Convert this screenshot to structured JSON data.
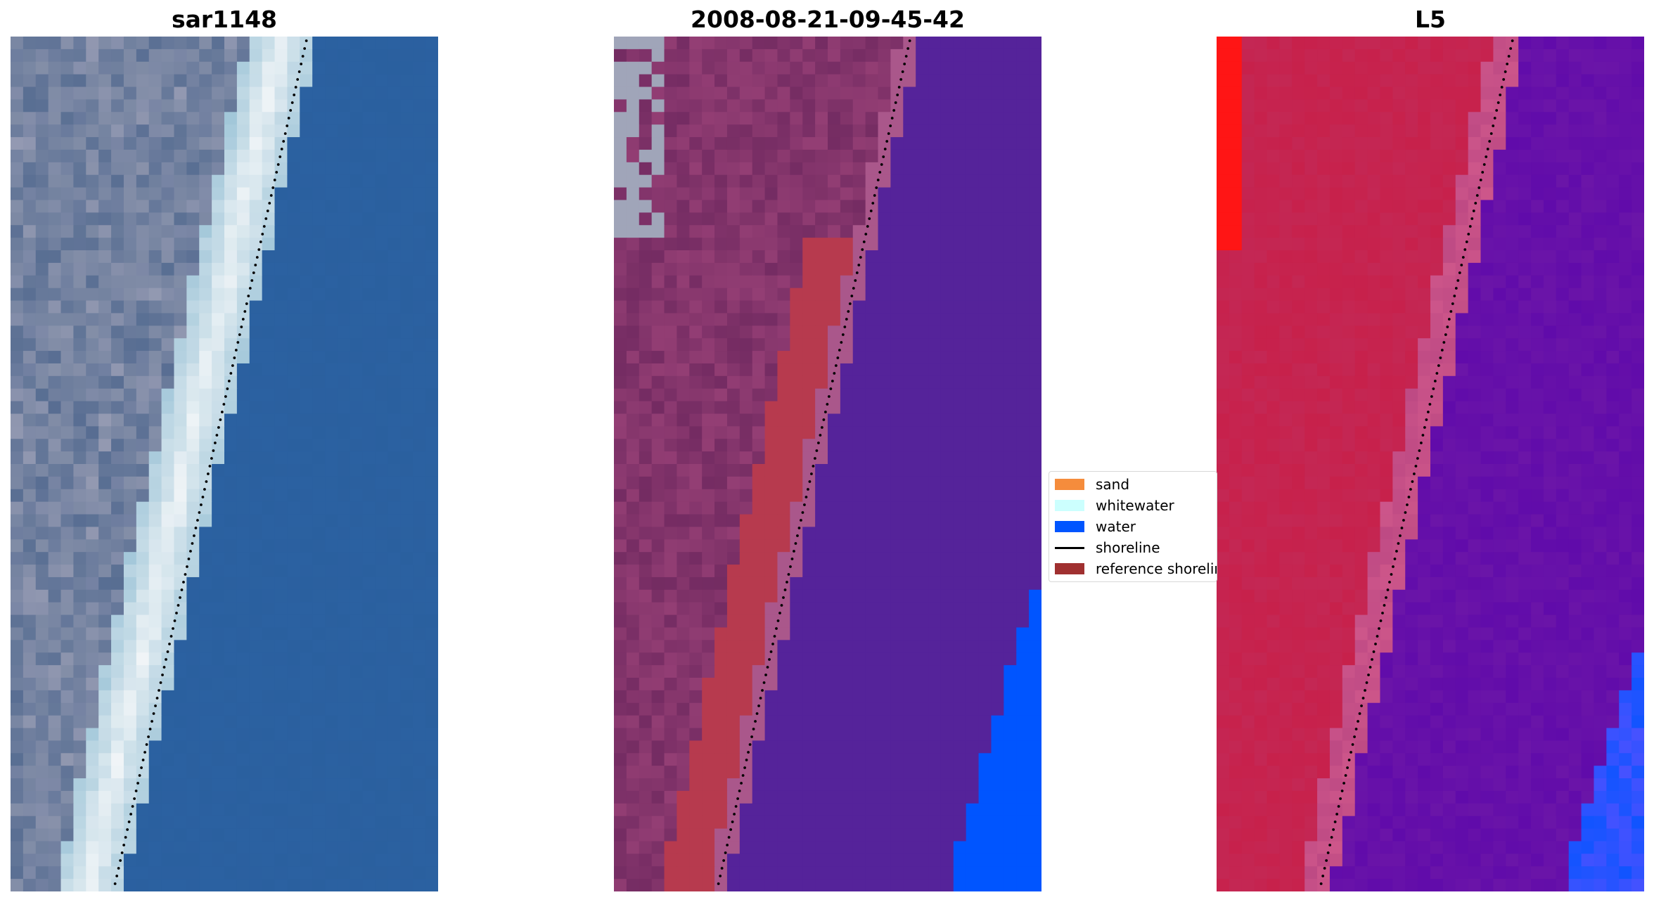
{
  "panels": [
    {
      "title": "sar1148",
      "scene": "rgb"
    },
    {
      "title": "2008-08-21-09-45-42",
      "scene": "classified"
    },
    {
      "title": "L5",
      "scene": "probability"
    }
  ],
  "legend": {
    "items": [
      {
        "label": "sand",
        "kind": "patch",
        "color": "#f58c3c"
      },
      {
        "label": "whitewater",
        "kind": "patch",
        "color": "#ccfffe"
      },
      {
        "label": "water",
        "kind": "patch",
        "color": "#0055ff"
      },
      {
        "label": "shoreline",
        "kind": "line",
        "color": "#000000"
      },
      {
        "label": "reference shoreline",
        "kind": "patch",
        "color": "#a03030"
      }
    ]
  },
  "colors": {
    "ocean": "#2a5f9e",
    "land": "#8a93ab",
    "whitewater_band": "#e8f0f4",
    "classified_land": "#953f75",
    "classified_water": "#55239a",
    "reference_band": "#b73a4e",
    "probability_land": "#c8204a",
    "probability_water": "#6c16a8",
    "probability_high": "#ff1515",
    "deep_water": "#0055ff"
  }
}
